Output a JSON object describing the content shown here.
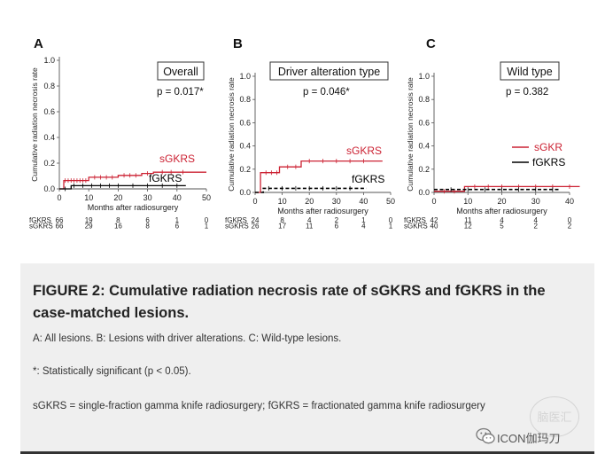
{
  "chart_data": [
    {
      "type": "line",
      "panel_letter": "A",
      "title": "Overall",
      "p_value": "p = 0.017*",
      "xlabel": "Months after radiosurgery",
      "ylabel": "Cumulative radiation necrosis rate",
      "xlim": [
        0,
        50
      ],
      "ylim": [
        0,
        1.0
      ],
      "xticks": [
        0,
        10,
        20,
        30,
        40,
        50
      ],
      "yticks": [
        0,
        0.2,
        0.4,
        0.6,
        0.8,
        1.0
      ],
      "ytick_labels": [
        "0.0",
        "0.2",
        "0.4",
        "0.6",
        "0.8",
        "1.0"
      ],
      "series": [
        {
          "name": "sGKRS",
          "color": "#cc2233",
          "dash": false,
          "x": [
            0,
            1.5,
            1.5,
            10,
            10,
            20,
            20,
            28,
            28,
            32,
            32,
            50
          ],
          "y": [
            0,
            0,
            0.065,
            0.065,
            0.09,
            0.09,
            0.105,
            0.105,
            0.12,
            0.12,
            0.13,
            0.13
          ],
          "censor_x": [
            2,
            3,
            4,
            5,
            6,
            7,
            8,
            9,
            12,
            14,
            16,
            18,
            22,
            24,
            26,
            30,
            35,
            38,
            42
          ]
        },
        {
          "name": "fGKRS",
          "color": "#000000",
          "dash": false,
          "x": [
            0,
            4,
            4,
            43
          ],
          "y": [
            0,
            0,
            0.025,
            0.025
          ],
          "censor_x": [
            2,
            5,
            8,
            11,
            14,
            17,
            20,
            25,
            30,
            35,
            40
          ]
        }
      ],
      "risk_table": {
        "labels": [
          "fGKRS",
          "sGKRS"
        ],
        "rows": [
          [
            "66",
            "19",
            "8",
            "6",
            "1",
            "0"
          ],
          [
            "66",
            "29",
            "16",
            "8",
            "6",
            "1"
          ]
        ]
      }
    },
    {
      "type": "line",
      "panel_letter": "B",
      "title": "Driver alteration type",
      "p_value": "p = 0.046*",
      "xlabel": "Months after radiosurgery",
      "ylabel": "Cumulative radiation necrosis rate",
      "xlim": [
        0,
        50
      ],
      "ylim": [
        0,
        1.0
      ],
      "xticks": [
        0,
        10,
        20,
        30,
        40,
        50
      ],
      "yticks": [
        0,
        0.2,
        0.4,
        0.6,
        0.8,
        1.0
      ],
      "ytick_labels": [
        "0.0",
        "0.2",
        "0.4",
        "0.6",
        "0.8",
        "1.0"
      ],
      "series": [
        {
          "name": "sGKRS",
          "color": "#cc2233",
          "dash": false,
          "x": [
            0,
            2,
            2,
            9,
            9,
            17,
            17,
            47
          ],
          "y": [
            0,
            0,
            0.17,
            0.17,
            0.22,
            0.22,
            0.27,
            0.27
          ],
          "censor_x": [
            4,
            6,
            8,
            12,
            15,
            20,
            25,
            30,
            35,
            40
          ]
        },
        {
          "name": "fGKRS",
          "color": "#000000",
          "dash": true,
          "x": [
            0,
            3,
            3,
            41
          ],
          "y": [
            0,
            0,
            0.035,
            0.035
          ],
          "censor_x": [
            5,
            10,
            15,
            20,
            25,
            30,
            35
          ]
        }
      ],
      "risk_table": {
        "labels": [
          "fGKRS",
          "sGKRS"
        ],
        "rows": [
          [
            "24",
            "8",
            "4",
            "2",
            "1",
            "0"
          ],
          [
            "26",
            "17",
            "11",
            "6",
            "4",
            "1"
          ]
        ]
      }
    },
    {
      "type": "line",
      "panel_letter": "C",
      "title": "Wild type",
      "p_value": "p = 0.382",
      "xlabel": "Months after radiosurgery",
      "ylabel": "Cumulative radiation necrosis rate",
      "xlim": [
        0,
        40
      ],
      "ylim": [
        0,
        1.0
      ],
      "xticks": [
        0,
        10,
        20,
        30,
        40
      ],
      "yticks": [
        0,
        0.2,
        0.4,
        0.6,
        0.8,
        1.0
      ],
      "ytick_labels": [
        "0.0",
        "0.2",
        "0.4",
        "0.6",
        "0.8",
        "1.0"
      ],
      "series": [
        {
          "name": "sGKR",
          "color": "#cc2233",
          "dash": false,
          "x": [
            0,
            9,
            9,
            43
          ],
          "y": [
            0.01,
            0.01,
            0.05,
            0.05
          ],
          "censor_x": [
            3,
            6,
            12,
            16,
            20,
            25,
            30,
            35,
            40
          ]
        },
        {
          "name": "fGKRS",
          "color": "#000000",
          "dash": true,
          "x": [
            0,
            37
          ],
          "y": [
            0.025,
            0.025
          ],
          "censor_x": [
            5,
            10,
            15,
            20,
            25,
            30,
            35
          ]
        }
      ],
      "risk_table": {
        "labels": [
          "fGKRS",
          "sGKRS"
        ],
        "rows": [
          [
            "42",
            "11",
            "4",
            "4",
            "0"
          ],
          [
            "40",
            "12",
            "5",
            "2",
            "2"
          ]
        ]
      }
    }
  ],
  "caption": {
    "title": "FIGURE 2: Cumulative radiation necrosis rate of sGKRS and fGKRS in the case-matched lesions.",
    "line1": "A: All lesions. B: Lesions with driver alterations. C: Wild-type lesions.",
    "line2": "*: Statistically significant (p < 0.05).",
    "line3": "sGKRS = single-fraction gamma knife radiosurgery; fGKRS = fractionated gamma knife radiosurgery"
  },
  "watermark": {
    "text": "ICON伽玛刀",
    "seal_text": "脑医汇",
    "icon": "wechat-icon"
  }
}
